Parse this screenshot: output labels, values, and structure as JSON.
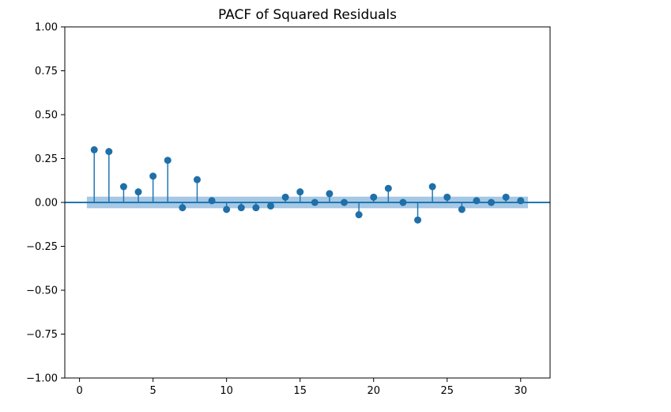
{
  "chart_data": {
    "type": "stem",
    "title": "PACF of Squared Residuals",
    "xlabel": "",
    "ylabel": "",
    "xlim": [
      -1,
      32
    ],
    "ylim": [
      -1.0,
      1.0
    ],
    "x_ticks": [
      0,
      5,
      10,
      15,
      20,
      25,
      30
    ],
    "y_ticks": [
      1.0,
      0.75,
      0.5,
      0.25,
      0.0,
      -0.25,
      -0.5,
      -0.75,
      -1.0
    ],
    "y_tick_labels": [
      "1.00",
      "0.75",
      "0.50",
      "0.25",
      "0.00",
      "−0.25",
      "−0.50",
      "−0.75",
      "−1.00"
    ],
    "lags": [
      1,
      2,
      3,
      4,
      5,
      6,
      7,
      8,
      9,
      10,
      11,
      12,
      13,
      14,
      15,
      16,
      17,
      18,
      19,
      20,
      21,
      22,
      23,
      24,
      25,
      26,
      27,
      28,
      29,
      30
    ],
    "values": [
      0.3,
      0.29,
      0.09,
      0.06,
      0.15,
      0.24,
      -0.03,
      0.13,
      0.01,
      -0.04,
      -0.03,
      -0.03,
      -0.02,
      0.03,
      0.06,
      0.0,
      0.05,
      0.0,
      -0.07,
      0.03,
      0.08,
      0.0,
      -0.1,
      0.09,
      0.03,
      -0.04,
      0.01,
      0.0,
      0.03,
      0.01
    ],
    "confidence_band": {
      "lower": -0.033,
      "upper": 0.033,
      "x_start": 0.5,
      "x_end": 30.5
    },
    "grid": false,
    "colors": {
      "stem": "#1f77b4",
      "marker": "#1f6fa8",
      "band": "#a6c8e4",
      "zero_line": "#1f77b4"
    }
  }
}
